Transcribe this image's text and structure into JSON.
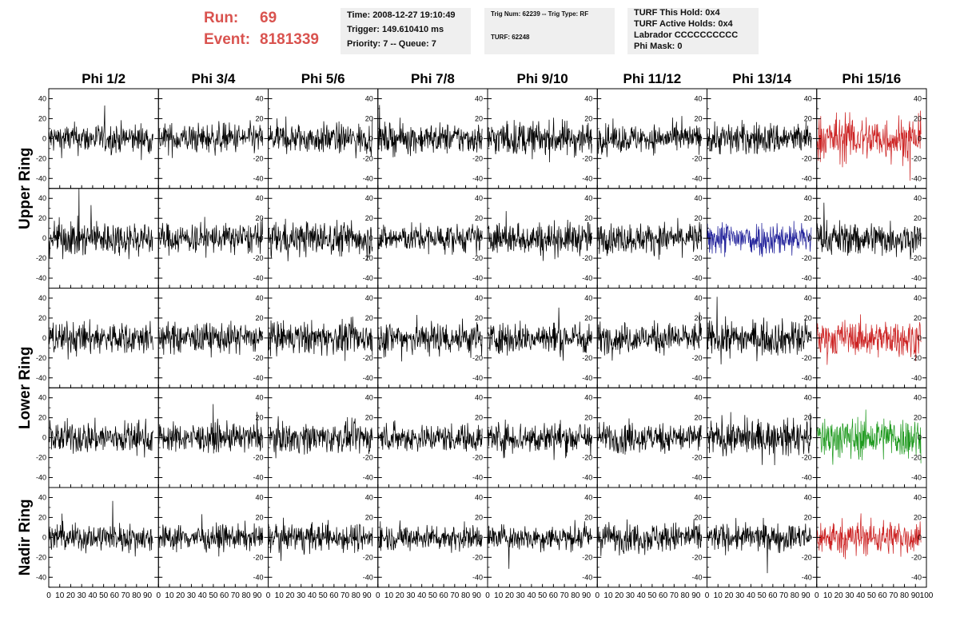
{
  "header": {
    "run_label": "Run:",
    "run_value": "69",
    "event_label": "Event:",
    "event_value": "8181339",
    "info1": [
      "Time: 2008-12-27 19:10:49",
      "Trigger: 149.610410 ms",
      "Priority: 7 -- Queue: 7"
    ],
    "info2": [
      "Trig Num: 62239 -- Trig Type: RF",
      "TURF: 62248"
    ],
    "info3": [
      "TURF This Hold: 0x4",
      "TURF Active Holds: 0x4",
      "Labrador CCCCCCCCCC",
      "Phi Mask: 0"
    ]
  },
  "colors": {
    "header_red": "#d9534f",
    "trace_default": "#000000",
    "trace_red": "#cc2222",
    "trace_blue": "#22229b",
    "trace_green": "#1f9a1f",
    "box_bg": "#efefef"
  },
  "chart_data": {
    "type": "line",
    "title": "",
    "columns": [
      "Phi 1/2",
      "Phi 3/4",
      "Phi 5/6",
      "Phi 7/8",
      "Phi 9/10",
      "Phi 11/12",
      "Phi 13/14",
      "Phi 15/16"
    ],
    "row_groups": [
      {
        "label": "Upper Ring",
        "rows": [
          0,
          1
        ]
      },
      {
        "label": "Lower Ring",
        "rows": [
          2,
          3
        ]
      },
      {
        "label": "Nadir Ring",
        "rows": [
          4
        ]
      }
    ],
    "xlim": [
      0,
      100
    ],
    "ylim": [
      -50,
      50
    ],
    "x_ticks": [
      0,
      10,
      20,
      30,
      40,
      50,
      60,
      70,
      80,
      90,
      100
    ],
    "x_tick_labels": [
      "0",
      "10",
      "20",
      "30",
      "40",
      "50",
      "60",
      "70",
      "80",
      "90",
      "100"
    ],
    "y_ticks": [
      -40,
      -20,
      0,
      20,
      40
    ],
    "y_tick_labels": [
      "-40",
      "-20",
      "0",
      "20",
      "40"
    ],
    "samples_per_trace": 260,
    "trace_extent_x": [
      0,
      95
    ],
    "trace_amplitudes": [
      [
        13,
        13,
        13,
        13,
        15,
        12,
        14,
        20
      ],
      [
        15,
        13,
        15,
        12,
        14,
        13,
        15,
        15
      ],
      [
        14,
        13,
        14,
        15,
        14,
        13,
        15,
        15
      ],
      [
        14,
        12,
        13,
        12,
        14,
        13,
        15,
        18
      ],
      [
        12,
        11,
        12,
        11,
        11,
        13,
        12,
        15
      ]
    ],
    "highlighted": [
      {
        "row": 0,
        "col": 7,
        "color": "red"
      },
      {
        "row": 1,
        "col": 6,
        "color": "blue"
      },
      {
        "row": 2,
        "col": 7,
        "color": "red"
      },
      {
        "row": 3,
        "col": 7,
        "color": "green"
      },
      {
        "row": 4,
        "col": 7,
        "color": "red"
      }
    ],
    "grid": false,
    "legend": "none"
  }
}
